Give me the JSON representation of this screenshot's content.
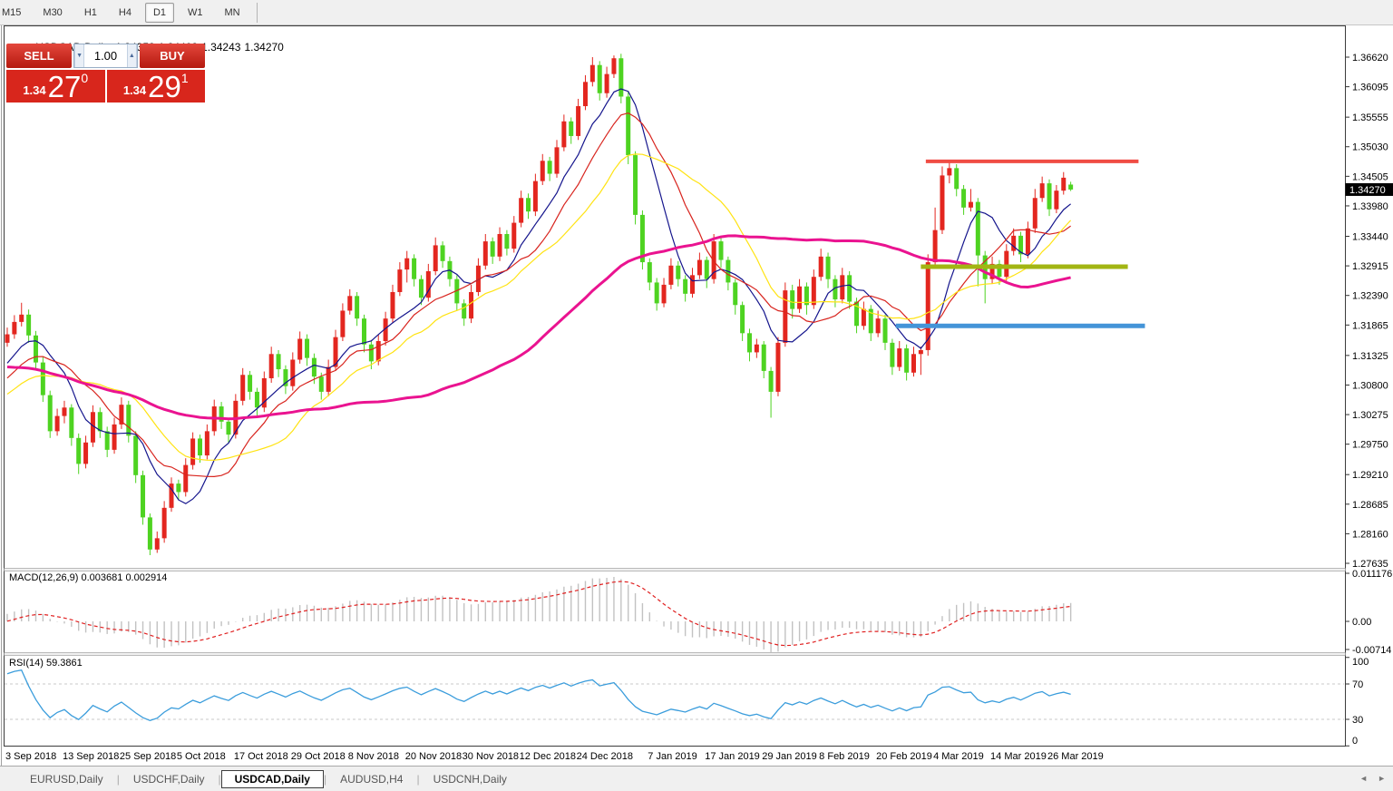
{
  "toolbar": {
    "timeframes": [
      "M15",
      "M30",
      "H1",
      "H4",
      "D1",
      "W1",
      "MN"
    ],
    "active": "D1"
  },
  "chart": {
    "title": "USDCAD,Daily",
    "ohlc": {
      "open": "1.34358",
      "high": "1.34408",
      "low": "1.34243",
      "close": "1.34270"
    },
    "current_price": "1.34270",
    "price_axis": [
      "1.36620",
      "1.36095",
      "1.35555",
      "1.35030",
      "1.34505",
      "1.33980",
      "1.33440",
      "1.32915",
      "1.32390",
      "1.31865",
      "1.31325",
      "1.30800",
      "1.30275",
      "1.29750",
      "1.29210",
      "1.28685",
      "1.28160",
      "1.27635"
    ],
    "x_labels": [
      [
        "3 Sep 2018",
        0
      ],
      [
        "13 Sep 2018",
        8
      ],
      [
        "25 Sep 2018",
        16
      ],
      [
        "5 Oct 2018",
        24
      ],
      [
        "17 Oct 2018",
        32
      ],
      [
        "29 Oct 2018",
        40
      ],
      [
        "8 Nov 2018",
        48
      ],
      [
        "20 Nov 2018",
        56
      ],
      [
        "30 Nov 2018",
        64
      ],
      [
        "12 Dec 2018",
        72
      ],
      [
        "24 Dec 2018",
        80
      ],
      [
        "7 Jan 2019",
        90
      ],
      [
        "17 Jan 2019",
        98
      ],
      [
        "29 Jan 2019",
        106
      ],
      [
        "8 Feb 2019",
        114
      ],
      [
        "20 Feb 2019",
        122
      ],
      [
        "4 Mar 2019",
        130
      ],
      [
        "14 Mar 2019",
        138
      ],
      [
        "26 Mar 2019",
        146
      ]
    ]
  },
  "trade_panel": {
    "sell_label": "SELL",
    "buy_label": "BUY",
    "lot_size": "1.00",
    "sell_price_prefix": "1.34",
    "sell_price_big": "27",
    "sell_price_sup": "0",
    "buy_price_prefix": "1.34",
    "buy_price_big": "29",
    "buy_price_sup": "1"
  },
  "icons": {
    "title_marker": "▲",
    "lot_down": "▼",
    "lot_up": "▲",
    "tab_scroll_left": "◄",
    "tab_scroll_right": "►"
  },
  "tabs": {
    "items": [
      "EURUSD,Daily",
      "USDCHF,Daily",
      "USDCAD,Daily",
      "AUDUSD,H4",
      "USDCNH,Daily"
    ],
    "active": "USDCAD,Daily"
  },
  "chart_data": {
    "type": "candlestick",
    "symbol": "USDCAD",
    "timeframe": "Daily",
    "convention": "red candles = bullish, green candles = bearish",
    "ylim": [
      1.27635,
      1.3662
    ],
    "candles": [
      [
        1.3155,
        1.3182,
        1.3148,
        1.317
      ],
      [
        1.317,
        1.3204,
        1.3162,
        1.3192
      ],
      [
        1.3192,
        1.3226,
        1.3184,
        1.3205
      ],
      [
        1.3205,
        1.3214,
        1.3155,
        1.3168
      ],
      [
        1.3168,
        1.3176,
        1.3108,
        1.312
      ],
      [
        1.312,
        1.313,
        1.305,
        1.3062
      ],
      [
        1.3062,
        1.307,
        1.2986,
        1.2998
      ],
      [
        1.2998,
        1.3038,
        1.299,
        1.3025
      ],
      [
        1.3025,
        1.3052,
        1.3012,
        1.304
      ],
      [
        1.304,
        1.3046,
        1.2972,
        1.2986
      ],
      [
        1.2986,
        1.2994,
        1.2922,
        1.294
      ],
      [
        1.294,
        1.299,
        1.2932,
        1.2978
      ],
      [
        1.2978,
        1.3044,
        1.297,
        1.3032
      ],
      [
        1.3032,
        1.304,
        1.2986,
        1.2998
      ],
      [
        1.2998,
        1.3006,
        1.2952,
        1.2965
      ],
      [
        1.2965,
        1.3022,
        1.2958,
        1.301
      ],
      [
        1.301,
        1.3058,
        1.3002,
        1.3045
      ],
      [
        1.3045,
        1.3052,
        1.2978,
        1.299
      ],
      [
        1.299,
        1.2998,
        1.2906,
        1.292
      ],
      [
        1.292,
        1.2928,
        1.2832,
        1.2845
      ],
      [
        1.2845,
        1.2852,
        1.2778,
        1.2788
      ],
      [
        1.2788,
        1.282,
        1.2782,
        1.2808
      ],
      [
        1.2808,
        1.2874,
        1.28,
        1.2862
      ],
      [
        1.2862,
        1.2916,
        1.2855,
        1.2905
      ],
      [
        1.2905,
        1.2912,
        1.2876,
        1.289
      ],
      [
        1.289,
        1.295,
        1.2882,
        1.2938
      ],
      [
        1.2938,
        1.2996,
        1.293,
        1.2985
      ],
      [
        1.2985,
        1.2992,
        1.2942,
        1.2955
      ],
      [
        1.2955,
        1.301,
        1.2948,
        1.2998
      ],
      [
        1.2998,
        1.3054,
        1.299,
        1.3042
      ],
      [
        1.3042,
        1.305,
        1.3002,
        1.3015
      ],
      [
        1.3015,
        1.3022,
        1.2978,
        1.2992
      ],
      [
        1.2992,
        1.3064,
        1.2985,
        1.3052
      ],
      [
        1.3052,
        1.311,
        1.3044,
        1.3098
      ],
      [
        1.3098,
        1.3105,
        1.3054,
        1.3068
      ],
      [
        1.3068,
        1.3075,
        1.3026,
        1.304
      ],
      [
        1.304,
        1.3104,
        1.3032,
        1.3092
      ],
      [
        1.3092,
        1.3148,
        1.3084,
        1.3135
      ],
      [
        1.3135,
        1.3142,
        1.3094,
        1.3108
      ],
      [
        1.3108,
        1.3115,
        1.3064,
        1.3078
      ],
      [
        1.3078,
        1.3138,
        1.307,
        1.3125
      ],
      [
        1.3125,
        1.3175,
        1.3118,
        1.3162
      ],
      [
        1.3162,
        1.317,
        1.3114,
        1.3128
      ],
      [
        1.3128,
        1.3136,
        1.3082,
        1.3095
      ],
      [
        1.3095,
        1.3102,
        1.3054,
        1.3068
      ],
      [
        1.3068,
        1.3125,
        1.306,
        1.3112
      ],
      [
        1.3112,
        1.3178,
        1.3105,
        1.3165
      ],
      [
        1.3165,
        1.3225,
        1.3158,
        1.3212
      ],
      [
        1.3212,
        1.325,
        1.3205,
        1.3238
      ],
      [
        1.3238,
        1.3245,
        1.3185,
        1.3198
      ],
      [
        1.3198,
        1.3205,
        1.3138,
        1.3152
      ],
      [
        1.3152,
        1.316,
        1.3108,
        1.3122
      ],
      [
        1.3122,
        1.317,
        1.3115,
        1.3158
      ],
      [
        1.3158,
        1.321,
        1.315,
        1.3198
      ],
      [
        1.3198,
        1.3258,
        1.319,
        1.3245
      ],
      [
        1.3245,
        1.3298,
        1.3238,
        1.3285
      ],
      [
        1.3285,
        1.3318,
        1.3262,
        1.3305
      ],
      [
        1.3305,
        1.3312,
        1.3255,
        1.3268
      ],
      [
        1.3268,
        1.3275,
        1.3222,
        1.3235
      ],
      [
        1.3235,
        1.3295,
        1.3228,
        1.3282
      ],
      [
        1.3282,
        1.3342,
        1.3275,
        1.3328
      ],
      [
        1.3328,
        1.3335,
        1.3288,
        1.33
      ],
      [
        1.33,
        1.3308,
        1.3255,
        1.3268
      ],
      [
        1.3268,
        1.3275,
        1.3212,
        1.3225
      ],
      [
        1.3225,
        1.3232,
        1.3185,
        1.3198
      ],
      [
        1.3198,
        1.3258,
        1.319,
        1.3245
      ],
      [
        1.3245,
        1.3305,
        1.3238,
        1.3292
      ],
      [
        1.3292,
        1.3348,
        1.3285,
        1.3335
      ],
      [
        1.3335,
        1.3342,
        1.3295,
        1.3308
      ],
      [
        1.3308,
        1.336,
        1.33,
        1.3348
      ],
      [
        1.3348,
        1.3355,
        1.331,
        1.3322
      ],
      [
        1.3322,
        1.338,
        1.3315,
        1.3368
      ],
      [
        1.3368,
        1.3425,
        1.336,
        1.3412
      ],
      [
        1.3412,
        1.342,
        1.3375,
        1.3388
      ],
      [
        1.3388,
        1.3455,
        1.338,
        1.3442
      ],
      [
        1.3442,
        1.349,
        1.3435,
        1.3478
      ],
      [
        1.3478,
        1.3485,
        1.3442,
        1.3455
      ],
      [
        1.3455,
        1.3515,
        1.3448,
        1.3502
      ],
      [
        1.3502,
        1.356,
        1.3495,
        1.3548
      ],
      [
        1.3548,
        1.3555,
        1.3508,
        1.3522
      ],
      [
        1.3522,
        1.3588,
        1.3515,
        1.3575
      ],
      [
        1.3575,
        1.363,
        1.3568,
        1.3618
      ],
      [
        1.3618,
        1.3662,
        1.361,
        1.3648
      ],
      [
        1.3648,
        1.3655,
        1.3585,
        1.3598
      ],
      [
        1.3598,
        1.3645,
        1.359,
        1.3632
      ],
      [
        1.3632,
        1.3665,
        1.3625,
        1.366
      ],
      [
        1.366,
        1.3668,
        1.358,
        1.3592
      ],
      [
        1.3592,
        1.36,
        1.3472,
        1.3488
      ],
      [
        1.3488,
        1.3495,
        1.3365,
        1.3382
      ],
      [
        1.3382,
        1.339,
        1.3285,
        1.3298
      ],
      [
        1.3298,
        1.3305,
        1.3248,
        1.3262
      ],
      [
        1.3262,
        1.327,
        1.3212,
        1.3225
      ],
      [
        1.3225,
        1.327,
        1.3218,
        1.3258
      ],
      [
        1.3258,
        1.3305,
        1.325,
        1.3292
      ],
      [
        1.3292,
        1.33,
        1.3255,
        1.3268
      ],
      [
        1.3268,
        1.3275,
        1.3228,
        1.3242
      ],
      [
        1.3242,
        1.3288,
        1.3235,
        1.3275
      ],
      [
        1.3275,
        1.3315,
        1.3268,
        1.3302
      ],
      [
        1.3302,
        1.3308,
        1.3252,
        1.3268
      ],
      [
        1.3268,
        1.3348,
        1.326,
        1.3335
      ],
      [
        1.3335,
        1.3342,
        1.3288,
        1.3302
      ],
      [
        1.3302,
        1.3308,
        1.3248,
        1.3262
      ],
      [
        1.3262,
        1.3268,
        1.3205,
        1.3222
      ],
      [
        1.3222,
        1.3228,
        1.3158,
        1.3172
      ],
      [
        1.3172,
        1.318,
        1.3122,
        1.3138
      ],
      [
        1.3138,
        1.3162,
        1.3128,
        1.3152
      ],
      [
        1.3152,
        1.3158,
        1.3092,
        1.3105
      ],
      [
        1.3105,
        1.3112,
        1.3022,
        1.3068
      ],
      [
        1.3068,
        1.3165,
        1.306,
        1.3155
      ],
      [
        1.3155,
        1.3262,
        1.3148,
        1.3248
      ],
      [
        1.3248,
        1.3258,
        1.3198,
        1.3215
      ],
      [
        1.3215,
        1.3268,
        1.3208,
        1.3255
      ],
      [
        1.3255,
        1.3262,
        1.3205,
        1.3222
      ],
      [
        1.3222,
        1.3285,
        1.3215,
        1.3272
      ],
      [
        1.3272,
        1.3322,
        1.3265,
        1.3308
      ],
      [
        1.3308,
        1.3315,
        1.3252,
        1.3268
      ],
      [
        1.3268,
        1.3275,
        1.3218,
        1.3232
      ],
      [
        1.3232,
        1.3288,
        1.3225,
        1.3275
      ],
      [
        1.3275,
        1.3282,
        1.3215,
        1.3228
      ],
      [
        1.3228,
        1.3235,
        1.3172,
        1.3185
      ],
      [
        1.3185,
        1.3228,
        1.3178,
        1.3215
      ],
      [
        1.3215,
        1.3222,
        1.3158,
        1.3172
      ],
      [
        1.3172,
        1.3212,
        1.3165,
        1.3198
      ],
      [
        1.3198,
        1.3205,
        1.3142,
        1.3155
      ],
      [
        1.3155,
        1.3162,
        1.3098,
        1.3112
      ],
      [
        1.3112,
        1.3158,
        1.3105,
        1.3145
      ],
      [
        1.3145,
        1.3152,
        1.3088,
        1.3102
      ],
      [
        1.3102,
        1.3148,
        1.3095,
        1.3135
      ],
      [
        1.3135,
        1.3148,
        1.3098,
        1.3142
      ],
      [
        1.3142,
        1.3312,
        1.3132,
        1.3298
      ],
      [
        1.3298,
        1.3395,
        1.329,
        1.3355
      ],
      [
        1.3355,
        1.3468,
        1.3348,
        1.3452
      ],
      [
        1.3452,
        1.3475,
        1.3438,
        1.3465
      ],
      [
        1.3465,
        1.3472,
        1.3415,
        1.3428
      ],
      [
        1.3428,
        1.3435,
        1.3382,
        1.3395
      ],
      [
        1.3395,
        1.3428,
        1.3388,
        1.3405
      ],
      [
        1.3405,
        1.3412,
        1.3255,
        1.331
      ],
      [
        1.331,
        1.3318,
        1.3225,
        1.3268
      ],
      [
        1.3268,
        1.3308,
        1.326,
        1.3295
      ],
      [
        1.3295,
        1.3302,
        1.3258,
        1.3272
      ],
      [
        1.3272,
        1.333,
        1.3265,
        1.3318
      ],
      [
        1.3318,
        1.3358,
        1.331,
        1.3345
      ],
      [
        1.3345,
        1.3352,
        1.3298,
        1.3312
      ],
      [
        1.3312,
        1.337,
        1.3305,
        1.3358
      ],
      [
        1.3358,
        1.3428,
        1.335,
        1.3412
      ],
      [
        1.3412,
        1.345,
        1.3405,
        1.3438
      ],
      [
        1.3438,
        1.3445,
        1.338,
        1.3392
      ],
      [
        1.3392,
        1.3435,
        1.3385,
        1.3425
      ],
      [
        1.3425,
        1.3458,
        1.3418,
        1.3448
      ],
      [
        1.34358,
        1.34408,
        1.34243,
        1.3427
      ]
    ],
    "history_seed": [
      [
        0,
        1.326
      ],
      [
        20,
        1.318
      ],
      [
        40,
        1.3
      ],
      [
        52,
        1.306
      ],
      [
        59,
        1.315
      ]
    ],
    "colors": {
      "bull": "#e3261f",
      "bear": "#4ed321",
      "ma_fast": "#14148c",
      "ma_mid": "#d8241e",
      "ma_slow": "#ffe312",
      "ma_long": "#ea1390",
      "macd_hist": "#c2c2c2",
      "macd_signal": "#e02020",
      "rsi": "#3b9ddc",
      "line_red": "#f04c44",
      "line_olive": "#a2b513",
      "line_blue": "#4494d8"
    },
    "moving_averages": [
      {
        "period": 8,
        "color_key": "ma_fast",
        "width": 1.2
      },
      {
        "period": 13,
        "color_key": "ma_mid",
        "width": 1.2
      },
      {
        "period": 21,
        "color_key": "ma_slow",
        "width": 1.2
      },
      {
        "period": 55,
        "color_key": "ma_long",
        "width": 3
      }
    ],
    "horizontal_lines": [
      {
        "name": "resistance",
        "price": 1.3477,
        "from_index": 128.7,
        "to_index": 158.5,
        "color_key": "line_red",
        "width": 4
      },
      {
        "name": "mid-support",
        "price": 1.329,
        "from_index": 128.0,
        "to_index": 157.0,
        "color_key": "line_olive",
        "width": 5
      },
      {
        "name": "support",
        "price": 1.3185,
        "from_index": 124.5,
        "to_index": 159.4,
        "color_key": "line_blue",
        "width": 5
      }
    ],
    "indicators": {
      "macd": {
        "label": "MACD(12,26,9)",
        "value_main": "0.003681",
        "value_signal": "0.002914",
        "fast": 12,
        "slow": 26,
        "signal": 9,
        "axis_labels": [
          "0.011176",
          "0.00",
          "-0.00714"
        ]
      },
      "rsi": {
        "label": "RSI(14)",
        "value": "59.3861",
        "period": 14,
        "levels": [
          70,
          30
        ],
        "axis_labels": [
          "100",
          "70",
          "30",
          "0"
        ]
      }
    }
  }
}
